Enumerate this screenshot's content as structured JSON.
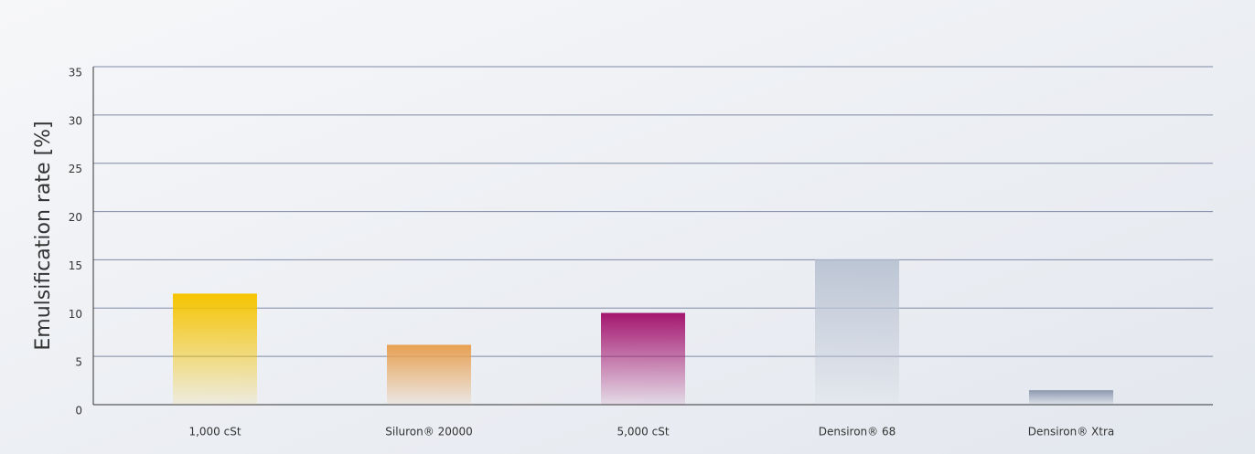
{
  "chart_data": {
    "type": "bar",
    "y_label": "Emulsification rate [%]",
    "categories": [
      "1,000 cSt",
      "Siluron® 20000",
      "5,000 cSt",
      "Densiron® 68",
      "Densiron® Xtra"
    ],
    "values": [
      11.5,
      6.2,
      9.5,
      15,
      1.5
    ],
    "colors": [
      "#f5c400",
      "#e8a052",
      "#a4166f",
      "#bcc5d4",
      "#8c98b0"
    ],
    "ylim": [
      0,
      35
    ],
    "yticks": [
      0,
      5,
      10,
      15,
      20,
      25,
      30,
      35
    ],
    "grid": true
  }
}
